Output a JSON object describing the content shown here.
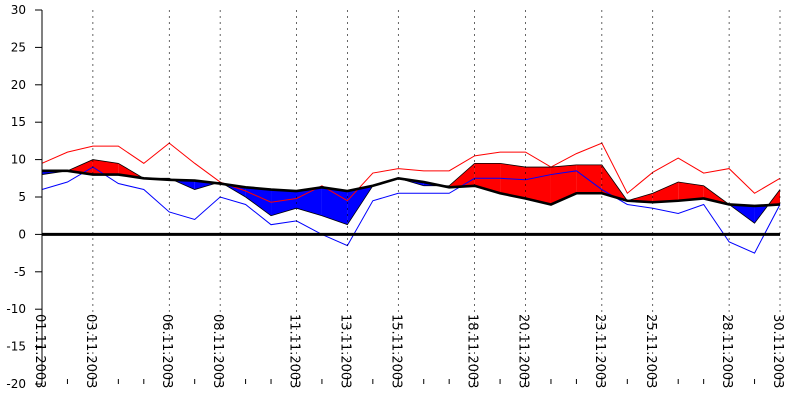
{
  "chart_data": {
    "type": "area",
    "ylim": [
      -20,
      30
    ],
    "y_ticks": [
      30,
      25,
      20,
      15,
      10,
      5,
      0,
      -5,
      -10,
      -15,
      -20
    ],
    "x_range": [
      "01.11.2003",
      "30.11.2003"
    ],
    "x_tick_labels": [
      "01.11.2003",
      "03.11.2003",
      "06.11.2003",
      "08.11.2003",
      "11.11.2003",
      "13.11.2003",
      "15.11.2003",
      "18.11.2003",
      "20.11.2003",
      "23.11.2003",
      "25.11.2003",
      "28.11.2003",
      "30.11.2003"
    ],
    "x": [
      "01.11.2003",
      "02.11.2003",
      "03.11.2003",
      "04.11.2003",
      "05.11.2003",
      "06.11.2003",
      "07.11.2003",
      "08.11.2003",
      "09.11.2003",
      "10.11.2003",
      "11.11.2003",
      "12.11.2003",
      "13.11.2003",
      "14.11.2003",
      "15.11.2003",
      "16.11.2003",
      "17.11.2003",
      "18.11.2003",
      "19.11.2003",
      "20.11.2003",
      "21.11.2003",
      "22.11.2003",
      "23.11.2003",
      "24.11.2003",
      "25.11.2003",
      "26.11.2003",
      "27.11.2003",
      "28.11.2003",
      "29.11.2003",
      "30.11.2003"
    ],
    "series": [
      {
        "values": [
          8.5,
          8.5,
          8.0,
          8.0,
          7.5,
          7.3,
          7.2,
          6.8,
          6.3,
          6.0,
          5.8,
          6.3,
          5.8,
          6.5,
          7.5,
          7.0,
          6.3,
          6.5,
          5.5,
          4.8,
          4.0,
          5.5,
          5.5,
          4.5,
          4.3,
          4.5,
          4.8,
          4.0,
          3.8,
          4.0
        ]
      },
      {
        "values": [
          8.0,
          8.5,
          10.0,
          9.5,
          7.5,
          7.5,
          6.0,
          7.0,
          5.0,
          2.5,
          3.5,
          2.5,
          1.3,
          6.5,
          7.5,
          6.5,
          6.5,
          9.5,
          9.5,
          9.0,
          9.0,
          9.3,
          9.3,
          4.5,
          5.5,
          7.0,
          6.5,
          4.0,
          1.5,
          6.0
        ],
        "color": "#ff0000",
        "color_below": "#0000ff"
      },
      {
        "values": [
          9.5,
          11.0,
          11.8,
          11.8,
          9.5,
          12.2,
          9.5,
          7.0,
          5.8,
          4.3,
          4.8,
          6.5,
          4.5,
          8.2,
          8.8,
          8.5,
          8.5,
          10.5,
          11.0,
          11.0,
          9.0,
          10.8,
          12.2,
          5.5,
          8.3,
          10.2,
          8.2,
          8.8,
          5.5,
          7.5
        ],
        "color": "#ff0000"
      },
      {
        "values": [
          6.0,
          7.0,
          9.0,
          6.8,
          6.0,
          3.0,
          2.0,
          5.0,
          4.0,
          1.3,
          1.8,
          0.0,
          -1.5,
          4.5,
          5.5,
          5.5,
          5.5,
          7.5,
          7.5,
          7.3,
          8.0,
          8.5,
          6.0,
          4.0,
          3.5,
          2.8,
          4.0,
          -1.0,
          -2.5,
          4.0
        ],
        "color": "#0000ff"
      }
    ],
    "zero_line": true
  }
}
